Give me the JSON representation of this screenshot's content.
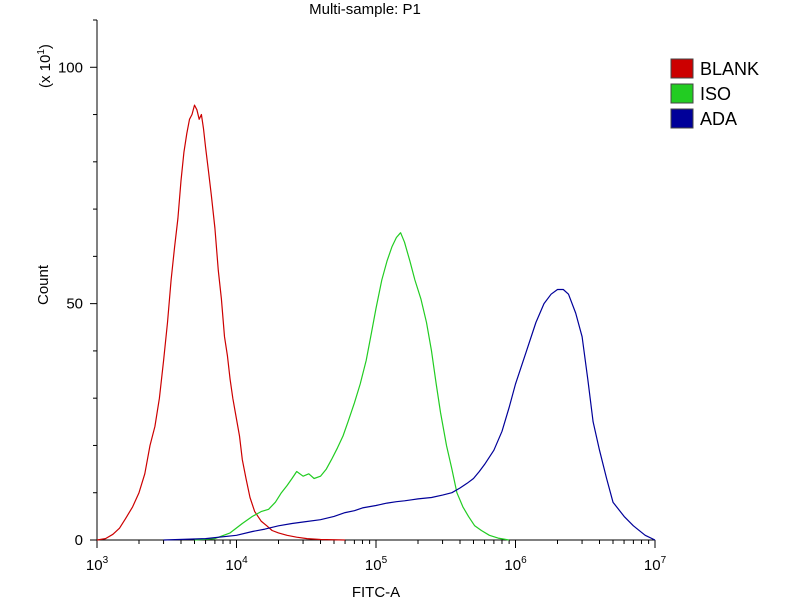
{
  "chart_data": {
    "type": "line",
    "title": "Multi-sample: P1",
    "xlabel": "FITC-A",
    "ylabel": "Count",
    "y_multiplier": {
      "prefix": "(x 10",
      "exponent": "1",
      "suffix": ")"
    },
    "x_scale": "log",
    "xlim": [
      1000,
      10000000
    ],
    "ylim": [
      0,
      110
    ],
    "x_ticks": [
      {
        "value": 1000,
        "base": "10",
        "exp": "3"
      },
      {
        "value": 10000,
        "base": "10",
        "exp": "4"
      },
      {
        "value": 100000,
        "base": "10",
        "exp": "5"
      },
      {
        "value": 1000000,
        "base": "10",
        "exp": "6"
      },
      {
        "value": 10000000,
        "base": "10",
        "exp": "7"
      }
    ],
    "y_ticks": [
      {
        "value": 0,
        "label": "0"
      },
      {
        "value": 50,
        "label": "50"
      },
      {
        "value": 100,
        "label": "100"
      }
    ],
    "legend_position": "top-right",
    "series": [
      {
        "name": "BLANK",
        "color": "#cc0000",
        "points": [
          [
            1000,
            0
          ],
          [
            1150,
            0.3
          ],
          [
            1300,
            1.2
          ],
          [
            1450,
            2.5
          ],
          [
            1600,
            4.5
          ],
          [
            1800,
            7
          ],
          [
            2000,
            10
          ],
          [
            2200,
            14
          ],
          [
            2400,
            20
          ],
          [
            2600,
            24
          ],
          [
            2800,
            30
          ],
          [
            3000,
            38
          ],
          [
            3200,
            46
          ],
          [
            3400,
            55
          ],
          [
            3600,
            62
          ],
          [
            3800,
            68
          ],
          [
            4000,
            76
          ],
          [
            4200,
            82
          ],
          [
            4400,
            86
          ],
          [
            4600,
            89
          ],
          [
            4800,
            90
          ],
          [
            5000,
            92
          ],
          [
            5200,
            91
          ],
          [
            5400,
            89
          ],
          [
            5600,
            90
          ],
          [
            5800,
            87
          ],
          [
            6000,
            83
          ],
          [
            6300,
            78
          ],
          [
            6600,
            73
          ],
          [
            7000,
            66
          ],
          [
            7400,
            57
          ],
          [
            7800,
            51
          ],
          [
            8200,
            43
          ],
          [
            8600,
            39
          ],
          [
            9000,
            34
          ],
          [
            9400,
            30
          ],
          [
            9800,
            27
          ],
          [
            10500,
            22
          ],
          [
            11000,
            17
          ],
          [
            11700,
            13
          ],
          [
            12500,
            9
          ],
          [
            13500,
            6
          ],
          [
            15000,
            4
          ],
          [
            16500,
            3
          ],
          [
            18000,
            2
          ],
          [
            20000,
            1.5
          ],
          [
            23000,
            1
          ],
          [
            27000,
            0.6
          ],
          [
            32000,
            0.3
          ],
          [
            40000,
            0.1
          ],
          [
            60000,
            0
          ]
        ]
      },
      {
        "name": "ISO",
        "color": "#22cc22",
        "points": [
          [
            5000,
            0
          ],
          [
            7000,
            0.3
          ],
          [
            9000,
            1.5
          ],
          [
            11000,
            3.5
          ],
          [
            13000,
            5
          ],
          [
            15000,
            6
          ],
          [
            17000,
            6.5
          ],
          [
            19000,
            8
          ],
          [
            21000,
            10
          ],
          [
            23000,
            11.5
          ],
          [
            25000,
            13
          ],
          [
            27000,
            14.5
          ],
          [
            30000,
            13.5
          ],
          [
            33000,
            14
          ],
          [
            36000,
            13
          ],
          [
            40000,
            13.5
          ],
          [
            44000,
            15
          ],
          [
            48000,
            17
          ],
          [
            53000,
            19.5
          ],
          [
            58000,
            22
          ],
          [
            63000,
            25
          ],
          [
            70000,
            29
          ],
          [
            77000,
            33
          ],
          [
            85000,
            38
          ],
          [
            93000,
            44
          ],
          [
            100000,
            49
          ],
          [
            110000,
            55
          ],
          [
            120000,
            59
          ],
          [
            130000,
            62
          ],
          [
            140000,
            64
          ],
          [
            150000,
            65
          ],
          [
            160000,
            63
          ],
          [
            175000,
            59
          ],
          [
            190000,
            55
          ],
          [
            210000,
            51
          ],
          [
            230000,
            46
          ],
          [
            250000,
            40
          ],
          [
            270000,
            33
          ],
          [
            290000,
            27
          ],
          [
            320000,
            20
          ],
          [
            350000,
            15
          ],
          [
            380000,
            10
          ],
          [
            420000,
            7
          ],
          [
            460000,
            5
          ],
          [
            510000,
            3
          ],
          [
            570000,
            2
          ],
          [
            650000,
            1
          ],
          [
            750000,
            0.4
          ],
          [
            900000,
            0
          ]
        ]
      },
      {
        "name": "ADA",
        "color": "#000099",
        "points": [
          [
            3000,
            0
          ],
          [
            6000,
            0.3
          ],
          [
            10000,
            1
          ],
          [
            13000,
            1.8
          ],
          [
            16000,
            2.3
          ],
          [
            20000,
            3
          ],
          [
            25000,
            3.5
          ],
          [
            30000,
            3.8
          ],
          [
            40000,
            4.3
          ],
          [
            50000,
            5
          ],
          [
            60000,
            5.8
          ],
          [
            70000,
            6.2
          ],
          [
            80000,
            6.8
          ],
          [
            100000,
            7.3
          ],
          [
            120000,
            7.8
          ],
          [
            140000,
            8.1
          ],
          [
            160000,
            8.3
          ],
          [
            180000,
            8.5
          ],
          [
            200000,
            8.7
          ],
          [
            250000,
            9
          ],
          [
            300000,
            9.5
          ],
          [
            350000,
            10
          ],
          [
            400000,
            11
          ],
          [
            450000,
            12
          ],
          [
            500000,
            13
          ],
          [
            550000,
            14.5
          ],
          [
            600000,
            16
          ],
          [
            700000,
            19
          ],
          [
            800000,
            23
          ],
          [
            900000,
            28
          ],
          [
            1000000,
            33
          ],
          [
            1200000,
            40
          ],
          [
            1400000,
            46
          ],
          [
            1600000,
            50
          ],
          [
            1800000,
            52
          ],
          [
            2000000,
            53
          ],
          [
            2200000,
            53
          ],
          [
            2400000,
            52
          ],
          [
            2700000,
            48
          ],
          [
            3000000,
            43
          ],
          [
            3300000,
            34
          ],
          [
            3600000,
            25
          ],
          [
            4000000,
            19
          ],
          [
            4500000,
            13
          ],
          [
            5000000,
            8
          ],
          [
            6000000,
            5
          ],
          [
            7000000,
            3
          ],
          [
            8500000,
            1
          ],
          [
            10000000,
            0
          ]
        ]
      }
    ]
  }
}
